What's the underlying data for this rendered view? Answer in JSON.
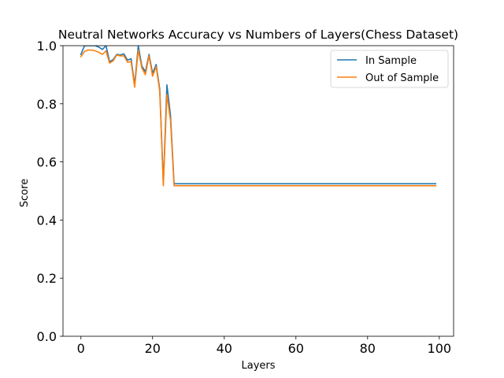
{
  "chart_data": {
    "type": "line",
    "title": "Neutral Networks Accuracy vs Numbers of Layers(Chess Dataset)",
    "xlabel": "Layers",
    "ylabel": "Score",
    "xlim": [
      -5,
      104
    ],
    "ylim": [
      0.0,
      1.0
    ],
    "xticks": [
      0,
      20,
      40,
      60,
      80,
      100
    ],
    "yticks": [
      0.0,
      0.2,
      0.4,
      0.6,
      0.8,
      1.0
    ],
    "xtick_labels": [
      "0",
      "20",
      "40",
      "60",
      "80",
      "100"
    ],
    "ytick_labels": [
      "0.0",
      "0.2",
      "0.4",
      "0.6",
      "0.8",
      "1.0"
    ],
    "grid": false,
    "legend_position": "upper right",
    "series": [
      {
        "name": "In Sample",
        "color": "#1f77b4",
        "points": [
          [
            0,
            0.97
          ],
          [
            1,
            1.0
          ],
          [
            2,
            1.0
          ],
          [
            3,
            1.0
          ],
          [
            4,
            1.0
          ],
          [
            5,
            0.995
          ],
          [
            6,
            0.987
          ],
          [
            7,
            1.0
          ],
          [
            8,
            0.945
          ],
          [
            9,
            0.952
          ],
          [
            10,
            0.97
          ],
          [
            11,
            0.968
          ],
          [
            12,
            0.972
          ],
          [
            13,
            0.95
          ],
          [
            14,
            0.955
          ],
          [
            15,
            0.865
          ],
          [
            16,
            1.0
          ],
          [
            17,
            0.93
          ],
          [
            18,
            0.91
          ],
          [
            19,
            0.97
          ],
          [
            20,
            0.905
          ],
          [
            21,
            0.935
          ],
          [
            22,
            0.85
          ],
          [
            23,
            0.525
          ],
          [
            24,
            0.865
          ],
          [
            25,
            0.76
          ],
          [
            26,
            0.525
          ],
          [
            99,
            0.525
          ]
        ]
      },
      {
        "name": "Out of Sample",
        "color": "#ff7f0e",
        "points": [
          [
            0,
            0.962
          ],
          [
            1,
            0.98
          ],
          [
            2,
            0.985
          ],
          [
            3,
            0.985
          ],
          [
            4,
            0.982
          ],
          [
            5,
            0.977
          ],
          [
            6,
            0.97
          ],
          [
            7,
            0.982
          ],
          [
            8,
            0.94
          ],
          [
            9,
            0.948
          ],
          [
            10,
            0.968
          ],
          [
            11,
            0.965
          ],
          [
            12,
            0.965
          ],
          [
            13,
            0.943
          ],
          [
            14,
            0.945
          ],
          [
            15,
            0.857
          ],
          [
            16,
            0.985
          ],
          [
            17,
            0.923
          ],
          [
            18,
            0.9
          ],
          [
            19,
            0.965
          ],
          [
            20,
            0.895
          ],
          [
            21,
            0.928
          ],
          [
            22,
            0.842
          ],
          [
            23,
            0.518
          ],
          [
            24,
            0.832
          ],
          [
            25,
            0.742
          ],
          [
            26,
            0.518
          ],
          [
            99,
            0.518
          ]
        ]
      }
    ]
  }
}
